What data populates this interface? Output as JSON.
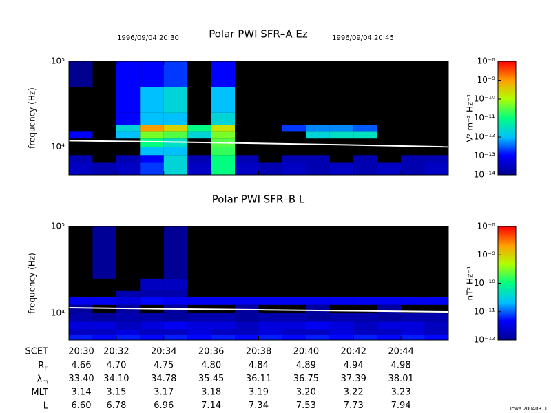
{
  "header": {
    "start": "1996/09/04 20:30",
    "end": "1996/09/04 20:45"
  },
  "chart_data": [
    {
      "type": "heatmap",
      "title": "Polar PWI SFR–A Ez",
      "ylabel": "frequency (Hz)",
      "ylog": true,
      "ylim": [
        4700,
        100000
      ],
      "yticks": [
        {
          "value": 10000,
          "label": "10⁴"
        },
        {
          "value": 100000,
          "label": "10⁵"
        }
      ],
      "xlim": [
        "20:30",
        "20:46"
      ],
      "xticks": [
        "20:30",
        "20:32",
        "20:34",
        "20:36",
        "20:38",
        "20:40",
        "20:42",
        "20:44"
      ],
      "xbins": [
        "20:30",
        "20:31",
        "20:32",
        "20:33",
        "20:34",
        "20:35",
        "20:36",
        "20:37",
        "20:38",
        "20:39",
        "20:40",
        "20:41",
        "20:42",
        "20:43",
        "20:44",
        "20:45",
        "20:46"
      ],
      "ybins": [
        4700,
        6500,
        8000,
        10000,
        12500,
        15000,
        18000,
        25000,
        50000,
        100000
      ],
      "z": [
        [
          3e-14,
          2e-14,
          3e-14,
          2e-13,
          2e-12,
          3e-14,
          1e-11,
          3e-14,
          2e-14,
          3e-14,
          2e-14,
          3e-14,
          2e-14,
          3e-14,
          2e-14,
          3e-14
        ],
        [
          2e-14,
          null,
          2e-14,
          1e-13,
          2e-12,
          2e-14,
          1e-11,
          2e-14,
          null,
          2e-14,
          2e-14,
          null,
          2e-14,
          null,
          2e-14,
          2e-14
        ],
        [
          null,
          null,
          null,
          1e-12,
          1e-12,
          null,
          2e-11,
          null,
          null,
          null,
          null,
          null,
          null,
          null,
          null,
          null
        ],
        [
          null,
          null,
          null,
          1e-11,
          3e-12,
          null,
          3e-11,
          null,
          null,
          null,
          null,
          null,
          null,
          null,
          null,
          null
        ],
        [
          1e-13,
          null,
          1e-12,
          5e-11,
          3e-11,
          2e-12,
          5e-11,
          null,
          null,
          null,
          2e-12,
          3e-12,
          3e-12,
          null,
          null,
          null
        ],
        [
          null,
          null,
          2e-12,
          1e-09,
          3e-10,
          1e-11,
          2e-10,
          null,
          null,
          2e-13,
          5e-13,
          5e-13,
          3e-13,
          null,
          null,
          null
        ],
        [
          null,
          null,
          1e-13,
          1e-12,
          1e-12,
          null,
          2e-12,
          null,
          null,
          null,
          null,
          null,
          null,
          null,
          null,
          null
        ],
        [
          null,
          null,
          1e-13,
          1e-12,
          2e-12,
          null,
          1e-12,
          null,
          null,
          null,
          null,
          null,
          null,
          null,
          null,
          null
        ],
        [
          1e-14,
          null,
          1e-13,
          1e-13,
          2e-13,
          null,
          1e-13,
          null,
          null,
          null,
          null,
          null,
          null,
          null,
          null,
          null
        ]
      ],
      "zlim": [
        1e-14,
        1e-08
      ],
      "zticks": [
        {
          "value": 1e-14,
          "label": "10⁻¹⁴"
        },
        {
          "value": 1e-13,
          "label": "10⁻¹³"
        },
        {
          "value": 1e-12,
          "label": "10⁻¹²"
        },
        {
          "value": 1e-11,
          "label": "10⁻¹¹"
        },
        {
          "value": 1e-10,
          "label": "10⁻¹⁰"
        },
        {
          "value": 1e-09,
          "label": "10⁻⁹"
        },
        {
          "value": 1e-08,
          "label": "10⁻⁸"
        }
      ],
      "zlabel": "V² m⁻² Hz⁻¹",
      "overlay": {
        "x": [
          "20:30",
          "20:34",
          "20:38",
          "20:42",
          "20:46"
        ],
        "values": [
          11800,
          11400,
          10970,
          10500,
          10000
        ],
        "color": "#ffffff"
      }
    },
    {
      "type": "heatmap",
      "title": "Polar PWI SFR–B L",
      "ylabel": "frequency (Hz)",
      "ylog": true,
      "ylim": [
        4900,
        100000
      ],
      "yticks": [
        {
          "value": 10000,
          "label": "10⁴"
        },
        {
          "value": 100000,
          "label": "10⁵"
        }
      ],
      "xlim": [
        "20:30",
        "20:46"
      ],
      "xticks": [
        "20:30",
        "20:32",
        "20:34",
        "20:36",
        "20:38",
        "20:40",
        "20:42",
        "20:44"
      ],
      "xbins": [
        "20:30",
        "20:31",
        "20:32",
        "20:33",
        "20:34",
        "20:35",
        "20:36",
        "20:37",
        "20:38",
        "20:39",
        "20:40",
        "20:41",
        "20:42",
        "20:43",
        "20:44",
        "20:45",
        "20:46"
      ],
      "ybins": [
        4900,
        5600,
        6500,
        8000,
        10000,
        12500,
        15500,
        18000,
        25000,
        100000
      ],
      "z": [
        [
          6e-12,
          5e-12,
          6e-12,
          5e-12,
          6e-12,
          5e-12,
          6e-12,
          5e-12,
          6e-12,
          5e-12,
          6e-12,
          5e-12,
          6e-12,
          5e-12,
          6e-12,
          5e-12
        ],
        [
          2e-12,
          2e-12,
          3e-12,
          2e-12,
          2e-12,
          3e-12,
          2e-12,
          2e-12,
          3e-12,
          2e-12,
          2e-12,
          3e-12,
          2e-12,
          2e-12,
          3e-12,
          2e-12
        ],
        [
          3e-12,
          3e-12,
          2e-12,
          3e-12,
          4e-12,
          3e-12,
          3e-12,
          2e-12,
          3e-12,
          3e-12,
          4e-12,
          3e-12,
          2e-12,
          3e-12,
          3e-12,
          2e-12
        ],
        [
          1.5e-12,
          1.2e-12,
          1.5e-12,
          1.5e-12,
          1.2e-12,
          1.5e-12,
          1.5e-12,
          1.2e-12,
          1.5e-12,
          1.5e-12,
          1.2e-12,
          1.5e-12,
          1.5e-12,
          1.2e-12,
          1.5e-12,
          1.5e-12
        ],
        [
          1.2e-12,
          null,
          1.2e-12,
          null,
          1.2e-12,
          null,
          null,
          1.2e-12,
          null,
          null,
          1.2e-12,
          null,
          null,
          1.2e-12,
          null,
          null
        ],
        [
          4e-12,
          4e-12,
          3e-12,
          5e-12,
          4e-12,
          4e-12,
          4e-12,
          4e-12,
          4e-12,
          4e-12,
          4e-12,
          4e-12,
          4e-12,
          4e-12,
          4e-12,
          4e-12
        ],
        [
          null,
          null,
          1.5e-12,
          1.5e-12,
          1.5e-12,
          null,
          null,
          null,
          null,
          null,
          null,
          null,
          null,
          null,
          null,
          null
        ],
        [
          null,
          null,
          null,
          2e-12,
          2e-12,
          null,
          null,
          null,
          null,
          null,
          null,
          null,
          null,
          null,
          null,
          null
        ],
        [
          null,
          1.1e-12,
          null,
          null,
          1.1e-12,
          null,
          null,
          null,
          null,
          null,
          null,
          null,
          null,
          null,
          null,
          null
        ]
      ],
      "zlim": [
        1e-12,
        1e-08
      ],
      "zticks": [
        {
          "value": 1e-12,
          "label": "10⁻¹²"
        },
        {
          "value": 1e-11,
          "label": "10⁻¹¹"
        },
        {
          "value": 1e-10,
          "label": "10⁻¹⁰"
        },
        {
          "value": 1e-09,
          "label": "10⁻⁹"
        },
        {
          "value": 1e-08,
          "label": "10⁻⁸"
        }
      ],
      "zlabel": "nT² Hz⁻¹",
      "overlay": {
        "x": [
          "20:30",
          "20:34",
          "20:38",
          "20:42",
          "20:46"
        ],
        "values": [
          11570,
          11200,
          10950,
          10650,
          10370
        ],
        "color": "#ffffff"
      }
    }
  ],
  "ephemeris": {
    "scet_label": "SCET",
    "rows": [
      {
        "label": "R",
        "sub": "E",
        "values": [
          "4.66",
          "4.70",
          "4.75",
          "4.80",
          "4.84",
          "4.89",
          "4.94",
          "4.98"
        ]
      },
      {
        "label": "λ",
        "sub": "m",
        "values": [
          "33.40",
          "34.10",
          "34.78",
          "35.45",
          "36.11",
          "36.75",
          "37.39",
          "38.01"
        ]
      },
      {
        "label": "MLT",
        "sub": "",
        "values": [
          "3.14",
          "3.15",
          "3.17",
          "3.18",
          "3.19",
          "3.20",
          "3.22",
          "3.23"
        ]
      },
      {
        "label": "L",
        "sub": "",
        "values": [
          "6.60",
          "6.78",
          "6.96",
          "7.14",
          "7.34",
          "7.53",
          "7.73",
          "7.94"
        ]
      }
    ]
  },
  "footer": "Iowa 20040311"
}
